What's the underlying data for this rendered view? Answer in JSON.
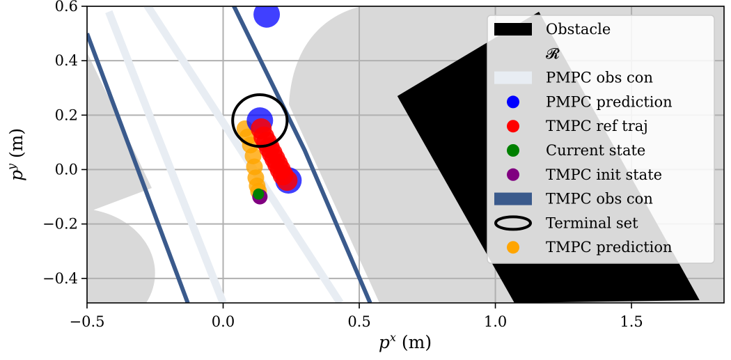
{
  "chart_data": {
    "type": "scatter",
    "title": "",
    "xlabel": "p^x (m)",
    "ylabel": "p^y (m)",
    "xlim": [
      -0.5,
      1.84
    ],
    "ylim": [
      -0.49,
      0.6
    ],
    "x_ticks": [
      -0.5,
      0.0,
      0.5,
      1.0,
      1.5
    ],
    "y_ticks": [
      -0.4,
      -0.2,
      0.0,
      0.2,
      0.4,
      0.6
    ],
    "x_tick_labels": [
      "−0.5",
      "0.0",
      "0.5",
      "1.0",
      "1.5"
    ],
    "y_tick_labels": [
      "−0.4",
      "−0.2",
      "0.0",
      "0.2",
      "0.4",
      "0.6"
    ],
    "grid": true,
    "legend_position": "top-right",
    "colors": {
      "obstacle": "#000000",
      "region": "#d9d9d9",
      "pmpc_obs_con": "#e8edf3",
      "pmpc_prediction": "#0000ff",
      "tmpc_ref_traj": "#ff0000",
      "current_state": "#008000",
      "tmpc_init_state": "#800080",
      "tmpc_obs_con": "#3a5a8c",
      "terminal_set": "#000000",
      "tmpc_prediction": "#ffa500"
    },
    "series": [
      {
        "name": "Obstacle",
        "kind": "polygon",
        "points": [
          [
            0.64,
            0.27
          ],
          [
            1.16,
            0.58
          ],
          [
            1.75,
            -0.48
          ],
          [
            1.07,
            -0.49
          ]
        ]
      },
      {
        "name": "𝓡",
        "kind": "region"
      },
      {
        "name": "PMPC obs con",
        "kind": "band_lines",
        "lines": [
          [
            [
              -0.42,
              0.58
            ],
            [
              0.0,
              -0.49
            ]
          ],
          [
            [
              -0.29,
              0.62
            ],
            [
              0.43,
              -0.49
            ]
          ]
        ]
      },
      {
        "name": "PMPC prediction",
        "kind": "points",
        "points": [
          [
            0.16,
            0.57
          ],
          [
            0.135,
            0.18
          ],
          [
            0.24,
            -0.04
          ]
        ]
      },
      {
        "name": "TMPC ref traj",
        "kind": "points",
        "points": [
          [
            0.14,
            0.15
          ],
          [
            0.15,
            0.12
          ],
          [
            0.16,
            0.1
          ],
          [
            0.17,
            0.08
          ],
          [
            0.18,
            0.06
          ],
          [
            0.19,
            0.04
          ],
          [
            0.2,
            0.02
          ],
          [
            0.21,
            0.0
          ],
          [
            0.22,
            -0.02
          ],
          [
            0.235,
            -0.04
          ]
        ]
      },
      {
        "name": "Current state",
        "kind": "points",
        "points": [
          [
            0.13,
            -0.09
          ]
        ]
      },
      {
        "name": "TMPC init state",
        "kind": "points",
        "points": [
          [
            0.135,
            -0.1
          ]
        ]
      },
      {
        "name": "TMPC obs con",
        "kind": "lines",
        "lines": [
          [
            [
              -0.5,
              0.5
            ],
            [
              -0.13,
              -0.49
            ]
          ],
          [
            [
              0.03,
              0.62
            ],
            [
              0.3,
              0.07
            ],
            [
              0.54,
              -0.49
            ]
          ]
        ]
      },
      {
        "name": "Terminal set",
        "kind": "ellipse",
        "center": [
          0.135,
          0.18
        ],
        "radii": [
          0.1,
          0.095
        ]
      },
      {
        "name": "TMPC prediction",
        "kind": "points",
        "points": [
          [
            0.08,
            0.15
          ],
          [
            0.09,
            0.12
          ],
          [
            0.1,
            0.09
          ],
          [
            0.11,
            0.05
          ],
          [
            0.115,
            0.01
          ],
          [
            0.12,
            -0.03
          ],
          [
            0.125,
            -0.06
          ],
          [
            0.13,
            -0.08
          ]
        ]
      }
    ],
    "legend": [
      {
        "label": "Obstacle",
        "marker": "patch",
        "color": "#000000"
      },
      {
        "label": "𝓡",
        "marker": "patch",
        "color": "#d9d9d9"
      },
      {
        "label": "PMPC obs con",
        "marker": "patch",
        "color": "#e8edf3"
      },
      {
        "label": "PMPC prediction",
        "marker": "dot",
        "color": "#0000ff"
      },
      {
        "label": "TMPC ref traj",
        "marker": "dot",
        "color": "#ff0000"
      },
      {
        "label": "Current state",
        "marker": "dot",
        "color": "#008000"
      },
      {
        "label": "TMPC init state",
        "marker": "dot",
        "color": "#800080"
      },
      {
        "label": "TMPC obs con",
        "marker": "patch",
        "color": "#3a5a8c"
      },
      {
        "label": "Terminal set",
        "marker": "ellipse",
        "color": "#000000"
      },
      {
        "label": "TMPC prediction",
        "marker": "dot",
        "color": "#ffa500"
      }
    ]
  }
}
